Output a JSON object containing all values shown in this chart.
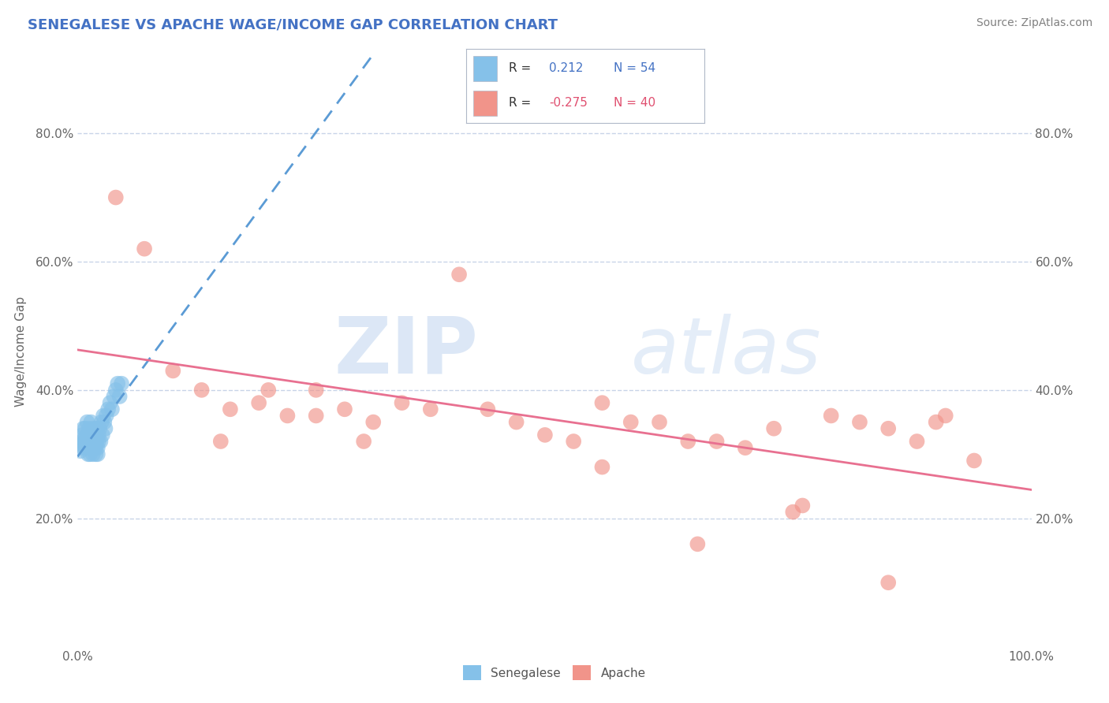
{
  "title": "SENEGALESE VS APACHE WAGE/INCOME GAP CORRELATION CHART",
  "source": "Source: ZipAtlas.com",
  "ylabel": "Wage/Income Gap",
  "watermark_zip": "ZIP",
  "watermark_atlas": "atlas",
  "xlim": [
    0.0,
    1.0
  ],
  "ylim": [
    0.0,
    0.92
  ],
  "yticks": [
    0.2,
    0.4,
    0.6,
    0.8
  ],
  "yticklabels_left": [
    "20.0%",
    "40.0%",
    "60.0%",
    "80.0%"
  ],
  "yticklabels_right": [
    "20.0%",
    "40.0%",
    "60.0%",
    "80.0%"
  ],
  "xticks": [
    0.0,
    0.2,
    0.4,
    0.6,
    0.8,
    1.0
  ],
  "xticklabels": [
    "0.0%",
    "",
    "",
    "",
    "",
    "100.0%"
  ],
  "color_blue": "#85c1e9",
  "color_pink": "#f1948a",
  "color_blue_line": "#5b9bd5",
  "color_pink_line": "#e87090",
  "title_color": "#4472c4",
  "source_color": "#808080",
  "grid_color": "#c8d4e8",
  "legend_r1_color": "#4472c4",
  "legend_r2_color": "#e05070",
  "senegalese_x": [
    0.003,
    0.004,
    0.005,
    0.005,
    0.006,
    0.006,
    0.007,
    0.007,
    0.008,
    0.008,
    0.009,
    0.009,
    0.01,
    0.01,
    0.011,
    0.011,
    0.012,
    0.012,
    0.013,
    0.013,
    0.014,
    0.014,
    0.015,
    0.015,
    0.016,
    0.016,
    0.017,
    0.017,
    0.018,
    0.018,
    0.019,
    0.019,
    0.02,
    0.02,
    0.021,
    0.021,
    0.022,
    0.022,
    0.023,
    0.024,
    0.025,
    0.026,
    0.027,
    0.028,
    0.029,
    0.03,
    0.032,
    0.034,
    0.036,
    0.038,
    0.04,
    0.042,
    0.044,
    0.046
  ],
  "senegalese_y": [
    0.305,
    0.315,
    0.32,
    0.33,
    0.31,
    0.34,
    0.315,
    0.325,
    0.32,
    0.34,
    0.31,
    0.32,
    0.33,
    0.35,
    0.3,
    0.32,
    0.31,
    0.34,
    0.3,
    0.33,
    0.32,
    0.35,
    0.31,
    0.33,
    0.3,
    0.32,
    0.31,
    0.34,
    0.32,
    0.33,
    0.31,
    0.3,
    0.32,
    0.34,
    0.3,
    0.31,
    0.32,
    0.33,
    0.34,
    0.32,
    0.35,
    0.33,
    0.36,
    0.35,
    0.34,
    0.36,
    0.37,
    0.38,
    0.37,
    0.39,
    0.4,
    0.41,
    0.39,
    0.41
  ],
  "apache_x": [
    0.04,
    0.07,
    0.1,
    0.13,
    0.16,
    0.19,
    0.22,
    0.25,
    0.28,
    0.31,
    0.34,
    0.37,
    0.4,
    0.43,
    0.46,
    0.49,
    0.52,
    0.55,
    0.58,
    0.61,
    0.64,
    0.67,
    0.7,
    0.73,
    0.76,
    0.79,
    0.82,
    0.85,
    0.88,
    0.91,
    0.94,
    0.15,
    0.2,
    0.25,
    0.3,
    0.55,
    0.65,
    0.75,
    0.85,
    0.9
  ],
  "apache_y": [
    0.7,
    0.62,
    0.43,
    0.4,
    0.37,
    0.38,
    0.36,
    0.4,
    0.37,
    0.35,
    0.38,
    0.37,
    0.58,
    0.37,
    0.35,
    0.33,
    0.32,
    0.38,
    0.35,
    0.35,
    0.32,
    0.32,
    0.31,
    0.34,
    0.22,
    0.36,
    0.35,
    0.34,
    0.32,
    0.36,
    0.29,
    0.32,
    0.4,
    0.36,
    0.32,
    0.28,
    0.16,
    0.21,
    0.1,
    0.35
  ],
  "blue_line_x0": 0.0,
  "blue_line_x1": 0.35,
  "pink_line_x0": 0.0,
  "pink_line_x1": 1.0
}
